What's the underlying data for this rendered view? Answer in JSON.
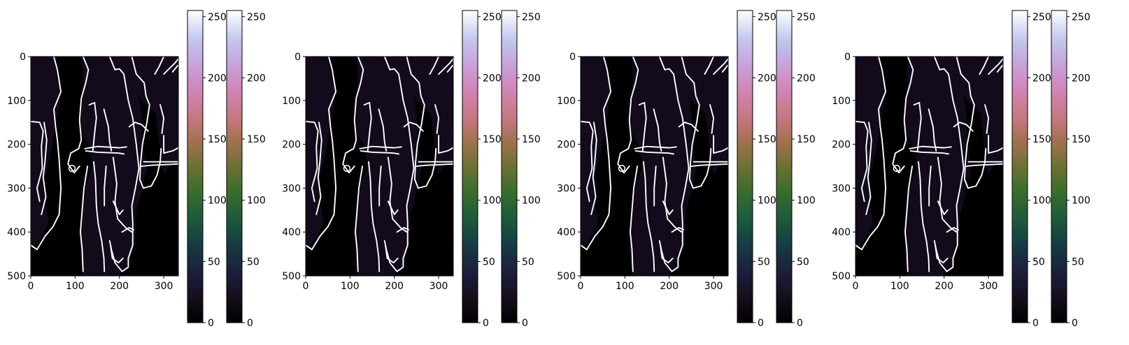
{
  "figure": {
    "background": "#ffffff",
    "panels": [
      {
        "id": "panel-1"
      },
      {
        "id": "panel-2"
      },
      {
        "id": "panel-3"
      },
      {
        "id": "panel-4"
      }
    ]
  },
  "chart_data": [
    {
      "type": "heatmap",
      "image": "binary edge map of figures (white edges on black, dark purple filled regions)",
      "x_ticks": [
        "0",
        "100",
        "200",
        "300"
      ],
      "y_ticks": [
        "0",
        "100",
        "200",
        "300",
        "400",
        "500"
      ],
      "xlim": [
        0,
        333
      ],
      "ylim": [
        500,
        0
      ],
      "colorbars": [
        {
          "colormap": "cubehelix",
          "range": [
            0,
            255
          ],
          "ticks": [
            "0",
            "50",
            "100",
            "150",
            "200",
            "250"
          ]
        },
        {
          "colormap": "cubehelix",
          "range": [
            0,
            255
          ],
          "ticks": [
            "0",
            "50",
            "100",
            "150",
            "200",
            "250"
          ]
        }
      ]
    },
    {
      "type": "heatmap",
      "image": "binary edge map of figures (white edges on black, dark purple filled regions)",
      "x_ticks": [
        "0",
        "100",
        "200",
        "300"
      ],
      "y_ticks": [
        "0",
        "100",
        "200",
        "300",
        "400",
        "500"
      ],
      "xlim": [
        0,
        333
      ],
      "ylim": [
        500,
        0
      ],
      "colorbars": [
        {
          "colormap": "cubehelix",
          "range": [
            0,
            255
          ],
          "ticks": [
            "0",
            "50",
            "100",
            "150",
            "200",
            "250"
          ]
        },
        {
          "colormap": "cubehelix",
          "range": [
            0,
            255
          ],
          "ticks": [
            "0",
            "50",
            "100",
            "150",
            "200",
            "250"
          ]
        }
      ]
    },
    {
      "type": "heatmap",
      "image": "binary edge map of figures (white edges on black, dark purple filled regions)",
      "x_ticks": [
        "0",
        "100",
        "200",
        "300"
      ],
      "y_ticks": [
        "0",
        "100",
        "200",
        "300",
        "400",
        "500"
      ],
      "xlim": [
        0,
        333
      ],
      "ylim": [
        500,
        0
      ],
      "colorbars": [
        {
          "colormap": "cubehelix",
          "range": [
            0,
            255
          ],
          "ticks": [
            "0",
            "50",
            "100",
            "150",
            "200",
            "250"
          ]
        },
        {
          "colormap": "cubehelix",
          "range": [
            0,
            255
          ],
          "ticks": [
            "0",
            "50",
            "100",
            "150",
            "200",
            "250"
          ]
        }
      ]
    },
    {
      "type": "heatmap",
      "image": "binary edge map of figures (white edges on black, dark purple filled regions)",
      "x_ticks": [
        "0",
        "100",
        "200",
        "300"
      ],
      "y_ticks": [
        "0",
        "100",
        "200",
        "300",
        "400",
        "500"
      ],
      "xlim": [
        0,
        333
      ],
      "ylim": [
        500,
        0
      ],
      "colorbars": [
        {
          "colormap": "cubehelix",
          "range": [
            0,
            255
          ],
          "ticks": [
            "0",
            "50",
            "100",
            "150",
            "200",
            "250"
          ]
        },
        {
          "colormap": "cubehelix",
          "range": [
            0,
            255
          ],
          "ticks": [
            "0",
            "50",
            "100",
            "150",
            "200",
            "250"
          ]
        }
      ]
    }
  ],
  "colors": {
    "image_background": "#000000",
    "region_fill": "#130a1c",
    "edge": "#ffffff",
    "axis": "#000000"
  }
}
